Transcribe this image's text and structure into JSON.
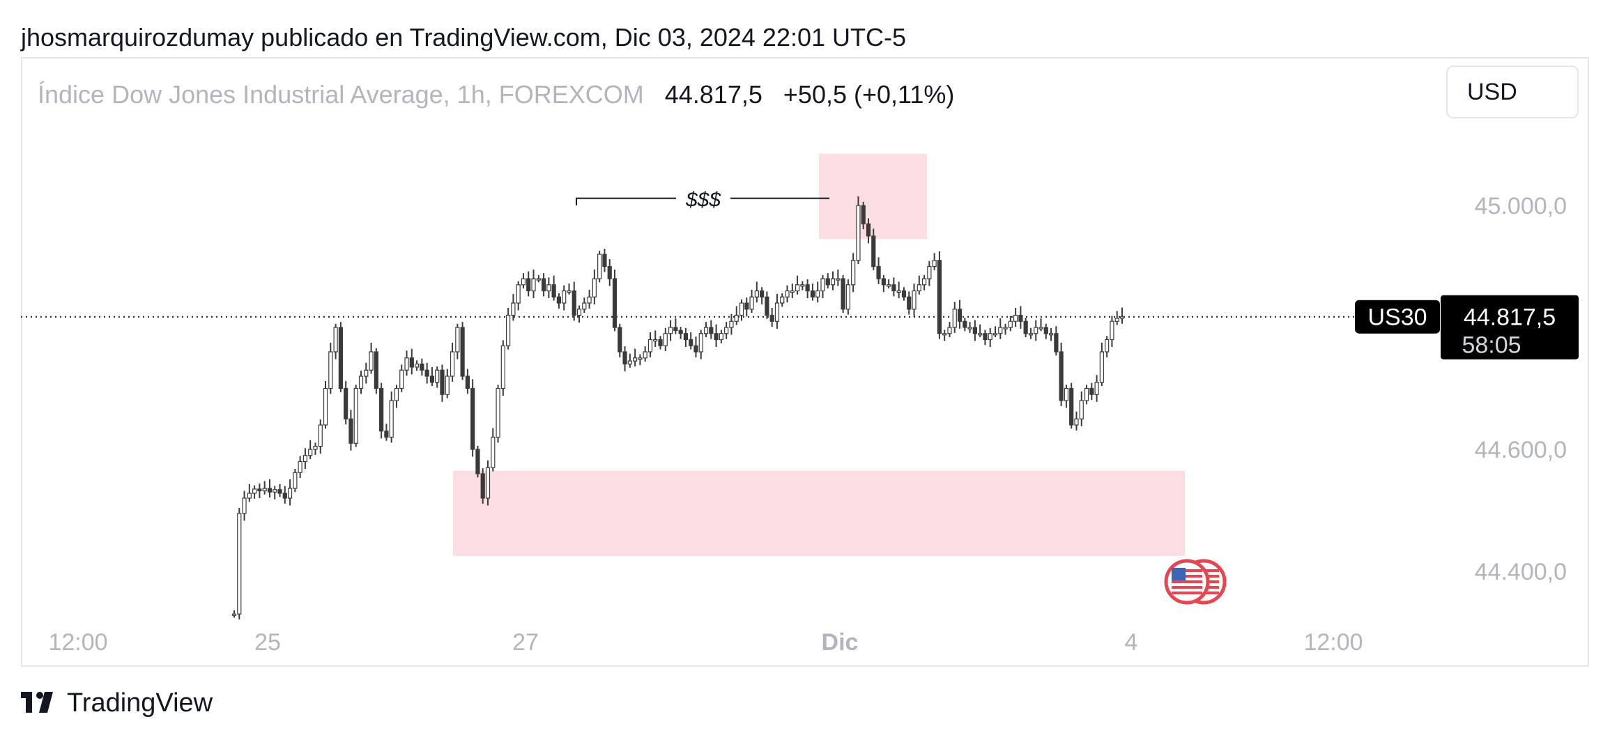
{
  "header": {
    "published_line": "jhosmarquirozdumay publicado en TradingView.com, Dic 03, 2024 22:01 UTC-5",
    "currency": "USD"
  },
  "symbol": {
    "description": "Índice Dow Jones Industrial Average, 1h, FOREXCOM",
    "price": "44.817,5",
    "change": "+50,5 (+0,11%)"
  },
  "footer": {
    "brand": "TradingView"
  },
  "colors": {
    "candle": "#3a3a3a",
    "zone": "#fcdde1",
    "axis_text": "#b2b5be",
    "label_bg": "#000000",
    "label_text": "#ffffff",
    "flag_ring": "#e64552"
  },
  "icons": {
    "logo": "tradingview-logo-icon",
    "event": "us-flag-event-icon"
  },
  "chart_data": {
    "type": "candlestick",
    "y_axis_labels": [
      "45.000,0",
      "44.600,0",
      "44.400,0"
    ],
    "y_axis_values": [
      45000,
      44600,
      44400
    ],
    "x_axis_labels": [
      "12:00",
      "25",
      "27",
      "Dic",
      "4",
      "12:00"
    ],
    "ylim": [
      44320,
      45100
    ],
    "current_price_label": {
      "symbol": "US30",
      "price": "44.817,5",
      "countdown": "58:05",
      "value": 44817.5
    },
    "annotation": {
      "text": "$$$",
      "level": 45005
    },
    "zones": [
      {
        "name": "upper",
        "y_top": 45085,
        "y_bottom": 44945
      },
      {
        "name": "lower",
        "y_top": 44565,
        "y_bottom": 44425
      }
    ],
    "series": [
      {
        "values": [
          44330,
          44495,
          44520,
          44528,
          44535,
          44532,
          44536,
          44530,
          44534,
          44528,
          44520,
          44536,
          44562,
          44580,
          44590,
          44600,
          44605,
          44640,
          44700,
          44760,
          44800,
          44700,
          44650,
          44610,
          44700,
          44720,
          44730,
          44760,
          44700,
          44630,
          44620,
          44680,
          44700,
          44730,
          44750,
          44735,
          44740,
          44730,
          44720,
          44710,
          44730,
          44690,
          44720,
          44760,
          44800,
          44720,
          44700,
          44600,
          44560,
          44520,
          44570,
          44620,
          44700,
          44770,
          44820,
          44840,
          44870,
          44880,
          44860,
          44880,
          44880,
          44860,
          44870,
          44850,
          44840,
          44860,
          44860,
          44820,
          44830,
          44840,
          44850,
          44880,
          44920,
          44900,
          44880,
          44800,
          44760,
          44740,
          44745,
          44750,
          44750,
          44760,
          44780,
          44780,
          44770,
          44790,
          44800,
          44795,
          44790,
          44780,
          44770,
          44760,
          44790,
          44800,
          44790,
          44780,
          44790,
          44800,
          44810,
          44820,
          44840,
          44830,
          44850,
          44860,
          44850,
          44820,
          44810,
          44840,
          44850,
          44860,
          44860,
          44870,
          44870,
          44860,
          44850,
          44860,
          44880,
          44870,
          44880,
          44880,
          44830,
          44870,
          44910,
          45000,
          44970,
          44950,
          44900,
          44880,
          44870,
          44870,
          44860,
          44860,
          44850,
          44830,
          44860,
          44870,
          44880,
          44900,
          44910,
          44790,
          44790,
          44800,
          44830,
          44810,
          44800,
          44800,
          44790,
          44790,
          44780,
          44790,
          44790,
          44800,
          44800,
          44810,
          44820,
          44810,
          44790,
          44790,
          44800,
          44800,
          44790,
          44790,
          44760,
          44680,
          44700,
          44640,
          44650,
          44680,
          44700,
          44690,
          44710,
          44760,
          44780,
          44810,
          44815,
          44817.5
        ]
      }
    ]
  }
}
